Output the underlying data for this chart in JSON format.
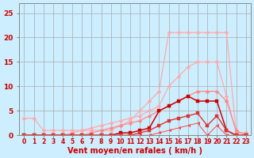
{
  "xlabel": "Vent moyen/en rafales ( km/h )",
  "background_color": "#cceeff",
  "grid_color": "#aaaaaa",
  "ylim": [
    0,
    27
  ],
  "xlim": [
    -0.5,
    23.5
  ],
  "series": [
    {
      "color": "#ffaaaa",
      "linewidth": 0.9,
      "marker": "D",
      "markersize": 2.5,
      "x": [
        0,
        1,
        2,
        3,
        4,
        5,
        6,
        7,
        8,
        9,
        10,
        11,
        12,
        13,
        14,
        15,
        16,
        17,
        18,
        19,
        20,
        21,
        22,
        23
      ],
      "y": [
        3.5,
        3.5,
        1,
        1,
        1,
        1,
        1,
        1,
        1,
        1,
        2,
        3,
        5,
        7,
        9,
        21,
        21,
        21,
        21,
        21,
        21,
        21,
        0.5,
        0.5
      ]
    },
    {
      "color": "#ffaaaa",
      "linewidth": 0.9,
      "marker": "D",
      "markersize": 2.5,
      "x": [
        0,
        1,
        2,
        3,
        4,
        5,
        6,
        7,
        8,
        9,
        10,
        11,
        12,
        13,
        14,
        15,
        16,
        17,
        18,
        19,
        20,
        21,
        22,
        23
      ],
      "y": [
        0,
        0,
        0,
        0,
        0,
        0.5,
        1,
        1.5,
        2,
        2.5,
        3,
        3.5,
        4,
        5,
        6,
        10,
        12,
        14,
        15,
        15,
        15,
        8,
        0.5,
        0.5
      ]
    },
    {
      "color": "#ff8888",
      "linewidth": 0.9,
      "marker": "D",
      "markersize": 2.5,
      "x": [
        0,
        1,
        2,
        3,
        4,
        5,
        6,
        7,
        8,
        9,
        10,
        11,
        12,
        13,
        14,
        15,
        16,
        17,
        18,
        19,
        20,
        21,
        22,
        23
      ],
      "y": [
        0,
        0,
        0,
        0,
        0,
        0,
        0,
        0.5,
        1,
        1.5,
        2,
        2.5,
        3,
        4,
        5,
        6,
        7,
        8,
        9,
        9,
        9,
        7,
        1,
        0
      ]
    },
    {
      "color": "#cc0000",
      "linewidth": 1.1,
      "marker": "s",
      "markersize": 2.5,
      "x": [
        0,
        1,
        2,
        3,
        4,
        5,
        6,
        7,
        8,
        9,
        10,
        11,
        12,
        13,
        14,
        15,
        16,
        17,
        18,
        19,
        20,
        21,
        22,
        23
      ],
      "y": [
        0,
        0,
        0,
        0,
        0,
        0,
        0,
        0,
        0,
        0,
        0.5,
        0.5,
        1,
        1.5,
        5,
        6,
        7,
        8,
        7,
        7,
        7,
        1,
        0,
        0
      ]
    },
    {
      "color": "#dd3333",
      "linewidth": 1.0,
      "marker": "s",
      "markersize": 2.5,
      "x": [
        0,
        1,
        2,
        3,
        4,
        5,
        6,
        7,
        8,
        9,
        10,
        11,
        12,
        13,
        14,
        15,
        16,
        17,
        18,
        19,
        20,
        21,
        22,
        23
      ],
      "y": [
        0,
        0,
        0,
        0,
        0,
        0,
        0,
        0,
        0,
        0,
        0,
        0,
        0.5,
        1,
        2,
        3,
        3.5,
        4,
        4.5,
        2,
        4,
        1,
        0,
        0
      ]
    },
    {
      "color": "#ff4444",
      "linewidth": 0.7,
      "marker": 4,
      "markersize": 3,
      "x": [
        0,
        1,
        2,
        3,
        4,
        5,
        6,
        7,
        8,
        9,
        10,
        11,
        12,
        13,
        14,
        15,
        16,
        17,
        18,
        19,
        20,
        21,
        22,
        23
      ],
      "y": [
        0,
        0,
        0,
        0,
        0,
        0,
        0,
        0,
        0,
        0,
        0,
        0,
        0,
        0,
        0.5,
        1,
        1.5,
        2,
        2.5,
        0,
        2,
        0,
        0,
        0
      ]
    }
  ]
}
